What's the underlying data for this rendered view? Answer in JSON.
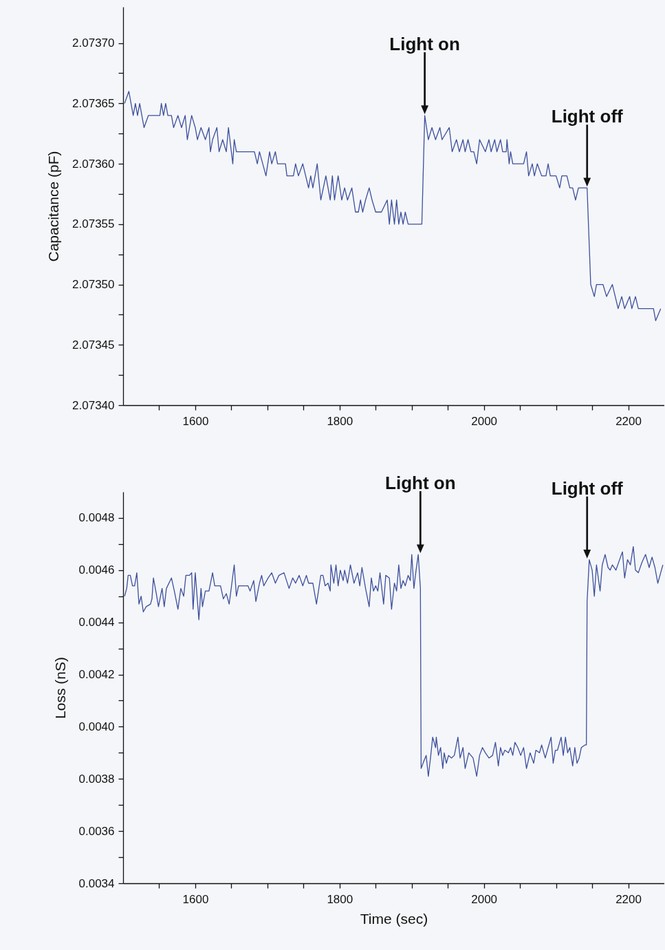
{
  "chart_data": [
    {
      "type": "line",
      "ylabel": "Capacitance (pF)",
      "xlim": [
        1500,
        2250
      ],
      "ylim": [
        2.0734,
        2.07373
      ],
      "xticks": [
        {
          "value": 1550,
          "label": null
        },
        1600,
        {
          "value": 1650,
          "label": null
        },
        {
          "value": 1700,
          "label": null
        },
        {
          "value": 1750,
          "label": null
        },
        1800,
        {
          "value": 1850,
          "label": null
        },
        {
          "value": 1900,
          "label": null
        },
        {
          "value": 1950,
          "label": null
        },
        2000,
        {
          "value": 2050,
          "label": null
        },
        {
          "value": 2100,
          "label": null
        },
        {
          "value": 2150,
          "label": null
        },
        2200
      ],
      "yticks": [
        {
          "value": 2.0734,
          "label": "2.07340"
        },
        {
          "value": 2.073425,
          "label": null
        },
        {
          "value": 2.07345,
          "label": "2.07345"
        },
        {
          "value": 2.073475,
          "label": null
        },
        {
          "value": 2.0735,
          "label": "2.07350"
        },
        {
          "value": 2.073525,
          "label": null
        },
        {
          "value": 2.07355,
          "label": "2.07355"
        },
        {
          "value": 2.073575,
          "label": null
        },
        {
          "value": 2.0736,
          "label": "2.07360"
        },
        {
          "value": 2.073625,
          "label": null
        },
        {
          "value": 2.07365,
          "label": "2.07365"
        },
        {
          "value": 2.073675,
          "label": null
        },
        {
          "value": 2.0737,
          "label": "2.07370"
        }
      ],
      "x": [
        1502,
        1508,
        1514,
        1517,
        1520,
        1523,
        1529,
        1535,
        1551,
        1553,
        1556,
        1559,
        1562,
        1567,
        1570,
        1576,
        1581,
        1586,
        1589,
        1595,
        1600,
        1603,
        1608,
        1614,
        1619,
        1621,
        1624,
        1630,
        1633,
        1638,
        1643,
        1646,
        1652,
        1654,
        1657,
        1682,
        1686,
        1689,
        1698,
        1703,
        1706,
        1711,
        1714,
        1725,
        1727,
        1736,
        1739,
        1743,
        1749,
        1757,
        1760,
        1763,
        1769,
        1774,
        1781,
        1787,
        1790,
        1793,
        1798,
        1803,
        1807,
        1811,
        1817,
        1822,
        1826,
        1829,
        1832,
        1836,
        1841,
        1845,
        1850,
        1858,
        1866,
        1869,
        1872,
        1876,
        1879,
        1882,
        1885,
        1888,
        1891,
        1895,
        1899,
        1914,
        1918,
        1923,
        1928,
        1933,
        1939,
        1942,
        1952,
        1956,
        1962,
        1966,
        1971,
        1974,
        1978,
        1982,
        1986,
        1990,
        1994,
        2002,
        2007,
        2010,
        2015,
        2018,
        2023,
        2026,
        2031,
        2032,
        2035,
        2037,
        2040,
        2055,
        2059,
        2062,
        2067,
        2070,
        2074,
        2080,
        2086,
        2089,
        2092,
        2100,
        2105,
        2108,
        2115,
        2119,
        2123,
        2127,
        2131,
        2143,
        2148,
        2153,
        2156,
        2165,
        2170,
        2178,
        2186,
        2191,
        2195,
        2202,
        2205,
        2210,
        2214,
        2235,
        2238,
        2245
      ],
      "series": [
        {
          "color": "#3d4f9c",
          "values": [
            2.07365,
            2.07366,
            2.07364,
            2.07365,
            2.07364,
            2.07365,
            2.07363,
            2.07364,
            2.07364,
            2.07365,
            2.07364,
            2.07365,
            2.07364,
            2.07364,
            2.07363,
            2.07364,
            2.07363,
            2.07364,
            2.07362,
            2.07364,
            2.07363,
            2.07362,
            2.07363,
            2.07362,
            2.07363,
            2.07361,
            2.07362,
            2.07363,
            2.07361,
            2.07362,
            2.07361,
            2.07363,
            2.0736,
            2.07362,
            2.07361,
            2.07361,
            2.0736,
            2.07361,
            2.07359,
            2.07361,
            2.0736,
            2.07361,
            2.0736,
            2.0736,
            2.07359,
            2.07359,
            2.0736,
            2.07359,
            2.0736,
            2.07358,
            2.07359,
            2.07358,
            2.0736,
            2.07357,
            2.07359,
            2.07357,
            2.07359,
            2.07357,
            2.07359,
            2.07357,
            2.07358,
            2.07357,
            2.07358,
            2.07356,
            2.07356,
            2.07357,
            2.07356,
            2.07357,
            2.07358,
            2.07357,
            2.07356,
            2.07356,
            2.07357,
            2.07355,
            2.07357,
            2.07355,
            2.07357,
            2.07355,
            2.07356,
            2.07355,
            2.07356,
            2.07355,
            2.07355,
            2.07355,
            2.07364,
            2.07362,
            2.07363,
            2.07362,
            2.07363,
            2.07362,
            2.07363,
            2.07361,
            2.07362,
            2.07361,
            2.07362,
            2.07361,
            2.07362,
            2.07361,
            2.07361,
            2.0736,
            2.07362,
            2.07361,
            2.07362,
            2.07361,
            2.07362,
            2.07361,
            2.07362,
            2.07361,
            2.07361,
            2.07362,
            2.0736,
            2.07361,
            2.0736,
            2.0736,
            2.07361,
            2.07359,
            2.0736,
            2.07359,
            2.0736,
            2.07359,
            2.07359,
            2.0736,
            2.07359,
            2.07359,
            2.07358,
            2.07359,
            2.07359,
            2.07358,
            2.07358,
            2.07357,
            2.07358,
            2.07358,
            2.0735,
            2.07349,
            2.0735,
            2.0735,
            2.07349,
            2.0735,
            2.07348,
            2.07349,
            2.07348,
            2.07349,
            2.07348,
            2.07349,
            2.07348,
            2.07348,
            2.07347,
            2.07348
          ]
        }
      ],
      "annotations": [
        "Light on",
        "Light off"
      ]
    },
    {
      "type": "line",
      "xlabel": "Time (sec)",
      "ylabel": "Loss (nS)",
      "xlim": [
        1500,
        2250
      ],
      "ylim": [
        0.0034,
        0.0049
      ],
      "xticks": [
        {
          "value": 1550,
          "label": null
        },
        1600,
        {
          "value": 1650,
          "label": null
        },
        {
          "value": 1700,
          "label": null
        },
        {
          "value": 1750,
          "label": null
        },
        1800,
        {
          "value": 1850,
          "label": null
        },
        {
          "value": 1900,
          "label": null
        },
        {
          "value": 1950,
          "label": null
        },
        2000,
        {
          "value": 2050,
          "label": null
        },
        {
          "value": 2100,
          "label": null
        },
        {
          "value": 2150,
          "label": null
        },
        2200
      ],
      "yticks": [
        0.0034,
        {
          "value": 0.0035,
          "label": null
        },
        0.0036,
        {
          "value": 0.0037,
          "label": null
        },
        0.0038,
        {
          "value": 0.0039,
          "label": null
        },
        {
          "value": 0.004,
          "label": "0.0040"
        },
        {
          "value": 0.0041,
          "label": null
        },
        0.0042,
        {
          "value": 0.0043,
          "label": null
        },
        0.0044,
        {
          "value": 0.0045,
          "label": null
        },
        0.0046,
        {
          "value": 0.0047,
          "label": null
        },
        0.0048
      ],
      "x": [
        1502,
        1505,
        1507,
        1510,
        1513,
        1516,
        1519,
        1522,
        1525,
        1528,
        1532,
        1538,
        1540,
        1542,
        1546,
        1549,
        1554,
        1557,
        1560,
        1567,
        1571,
        1576,
        1580,
        1584,
        1587,
        1592,
        1595,
        1597,
        1600,
        1605,
        1608,
        1610,
        1614,
        1619,
        1624,
        1627,
        1635,
        1639,
        1643,
        1647,
        1654,
        1657,
        1660,
        1673,
        1676,
        1681,
        1684,
        1689,
        1692,
        1695,
        1701,
        1706,
        1711,
        1716,
        1723,
        1730,
        1735,
        1739,
        1744,
        1749,
        1754,
        1757,
        1763,
        1768,
        1774,
        1777,
        1780,
        1784,
        1787,
        1788,
        1792,
        1795,
        1798,
        1801,
        1805,
        1807,
        1811,
        1815,
        1820,
        1825,
        1828,
        1831,
        1836,
        1841,
        1844,
        1847,
        1850,
        1853,
        1856,
        1861,
        1864,
        1869,
        1872,
        1876,
        1879,
        1882,
        1885,
        1888,
        1891,
        1895,
        1898,
        1900,
        1903,
        1906,
        1909,
        1912,
        1913,
        1917,
        1920,
        1923,
        1926,
        1929,
        1933,
        1934,
        1937,
        1940,
        1943,
        1945,
        1948,
        1951,
        1955,
        1959,
        1964,
        1967,
        1971,
        1974,
        1979,
        1985,
        1990,
        1994,
        1998,
        2002,
        2007,
        2012,
        2016,
        2020,
        2023,
        2026,
        2029,
        2034,
        2037,
        2040,
        2043,
        2047,
        2051,
        2055,
        2059,
        2064,
        2069,
        2072,
        2077,
        2080,
        2085,
        2089,
        2093,
        2096,
        2099,
        2102,
        2107,
        2110,
        2113,
        2116,
        2119,
        2123,
        2126,
        2129,
        2132,
        2135,
        2140,
        2142,
        2143,
        2146,
        2150,
        2153,
        2156,
        2161,
        2164,
        2168,
        2172,
        2175,
        2178,
        2183,
        2188,
        2192,
        2195,
        2199,
        2203,
        2207,
        2210,
        2214,
        2219,
        2224,
        2229,
        2233,
        2237,
        2241,
        2245,
        2248
      ],
      "series": [
        {
          "color": "#3d4f9c",
          "values": [
            0.0045,
            0.00453,
            0.00458,
            0.00458,
            0.00454,
            0.00454,
            0.00459,
            0.00447,
            0.0045,
            0.00444,
            0.00446,
            0.00447,
            0.00449,
            0.00457,
            0.00451,
            0.00446,
            0.00453,
            0.00446,
            0.00453,
            0.00457,
            0.00452,
            0.00445,
            0.00453,
            0.0045,
            0.00458,
            0.00458,
            0.00459,
            0.00445,
            0.00459,
            0.00441,
            0.00453,
            0.00446,
            0.00452,
            0.00452,
            0.00459,
            0.00454,
            0.00454,
            0.00449,
            0.00451,
            0.00447,
            0.00462,
            0.0045,
            0.00454,
            0.00454,
            0.00452,
            0.00456,
            0.00448,
            0.00455,
            0.00458,
            0.00454,
            0.00457,
            0.00459,
            0.00455,
            0.00458,
            0.00459,
            0.00453,
            0.00457,
            0.00455,
            0.00458,
            0.00454,
            0.00458,
            0.00455,
            0.00455,
            0.00447,
            0.00458,
            0.00458,
            0.00454,
            0.00455,
            0.00452,
            0.00462,
            0.00455,
            0.00462,
            0.00454,
            0.0046,
            0.00456,
            0.0046,
            0.00455,
            0.00462,
            0.00455,
            0.00459,
            0.00454,
            0.00461,
            0.00453,
            0.00446,
            0.00457,
            0.00452,
            0.00454,
            0.00452,
            0.00459,
            0.00447,
            0.00458,
            0.00457,
            0.00445,
            0.00455,
            0.00452,
            0.00462,
            0.00453,
            0.00456,
            0.00454,
            0.00458,
            0.00456,
            0.00466,
            0.00453,
            0.0046,
            0.00466,
            0.00453,
            0.00384,
            0.00387,
            0.00389,
            0.00381,
            0.00388,
            0.00396,
            0.00392,
            0.00396,
            0.00389,
            0.00392,
            0.00384,
            0.0039,
            0.00386,
            0.00389,
            0.00388,
            0.00389,
            0.00396,
            0.00388,
            0.00392,
            0.00384,
            0.0039,
            0.00388,
            0.00381,
            0.00389,
            0.00392,
            0.0039,
            0.00388,
            0.00389,
            0.00394,
            0.00385,
            0.00392,
            0.00389,
            0.00391,
            0.0039,
            0.00392,
            0.00389,
            0.00394,
            0.00392,
            0.00389,
            0.00392,
            0.00384,
            0.0039,
            0.00386,
            0.00391,
            0.0039,
            0.00393,
            0.00388,
            0.00392,
            0.00396,
            0.00386,
            0.00391,
            0.00391,
            0.00396,
            0.00389,
            0.00396,
            0.0039,
            0.00392,
            0.00385,
            0.00392,
            0.00386,
            0.00388,
            0.00392,
            0.00393,
            0.00393,
            0.00448,
            0.00464,
            0.0046,
            0.0045,
            0.00462,
            0.00452,
            0.00462,
            0.00466,
            0.00461,
            0.0046,
            0.00462,
            0.0046,
            0.00464,
            0.00467,
            0.00457,
            0.00464,
            0.00462,
            0.00469,
            0.0046,
            0.00459,
            0.00463,
            0.00466,
            0.00461,
            0.00465,
            0.00461,
            0.00455,
            0.00459,
            0.00462
          ]
        }
      ],
      "annotations": [
        "Light on",
        "Light off"
      ]
    }
  ]
}
